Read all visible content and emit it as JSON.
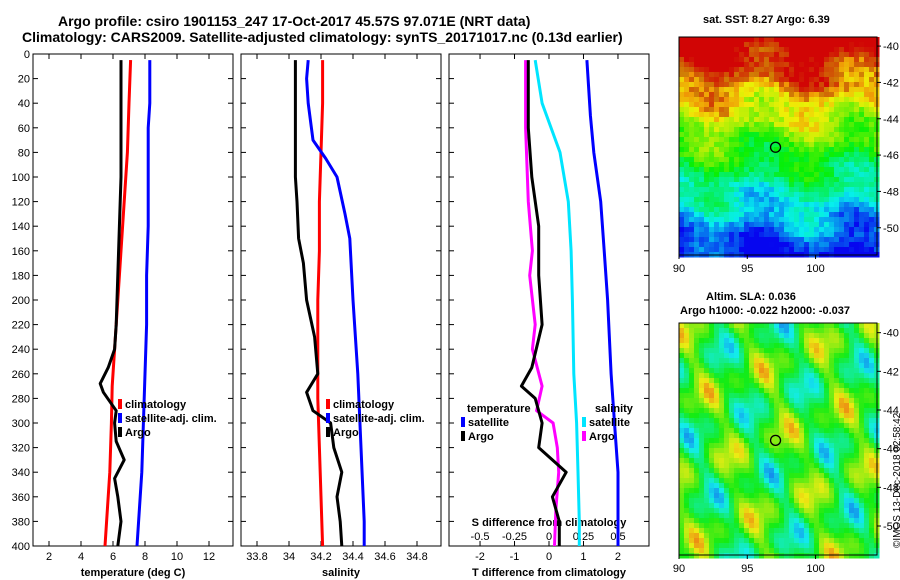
{
  "titles": {
    "line1": "Argo profile: csiro 1901153_247 17-Oct-2017 45.57S 97.071E (NRT data)",
    "line2": "Climatology: CARS2009. Satellite-adjusted climatology: synTS_20171017.nc (0.13d earlier)"
  },
  "colors": {
    "argo": "#000000",
    "climatology": "#ff0000",
    "satellite": "#0000ff",
    "s_satellite": "#00e5ff",
    "s_argo": "#ff00ff"
  },
  "depth_ticks": [
    0,
    20,
    40,
    60,
    80,
    100,
    120,
    140,
    160,
    180,
    200,
    220,
    240,
    260,
    280,
    300,
    320,
    340,
    360,
    380,
    400
  ],
  "chart_data": [
    {
      "type": "line",
      "xlabel": "temperature (deg C)",
      "ylabel": "depth",
      "xlim": [
        1,
        13.5
      ],
      "ylim": [
        400,
        0
      ],
      "xticks": [
        "2",
        "4",
        "6",
        "8",
        "10",
        "12"
      ],
      "legend": [
        "climatology",
        "satellite-adj. clim.",
        "Argo"
      ],
      "series": [
        {
          "name": "climatology",
          "depth": [
            5,
            40,
            80,
            120,
            160,
            200,
            240,
            270,
            300,
            340,
            380,
            400
          ],
          "values": [
            7.1,
            7.0,
            6.9,
            6.7,
            6.5,
            6.3,
            6.1,
            5.95,
            5.9,
            5.8,
            5.6,
            5.5
          ]
        },
        {
          "name": "satellite-adj. clim.",
          "depth": [
            5,
            40,
            60,
            100,
            140,
            180,
            220,
            260,
            300,
            340,
            380,
            400
          ],
          "values": [
            8.3,
            8.3,
            8.2,
            8.2,
            8.2,
            8.1,
            8.1,
            8.0,
            7.9,
            7.8,
            7.6,
            7.5
          ]
        },
        {
          "name": "Argo",
          "depth": [
            5,
            60,
            100,
            140,
            180,
            220,
            240,
            255,
            268,
            275,
            290,
            300,
            315,
            330,
            345,
            360,
            380,
            400
          ],
          "values": [
            6.5,
            6.5,
            6.5,
            6.4,
            6.3,
            6.2,
            6.1,
            5.7,
            5.2,
            5.4,
            6.2,
            6.1,
            6.2,
            6.7,
            6.1,
            6.3,
            6.5,
            6.3
          ]
        }
      ]
    },
    {
      "type": "line",
      "xlabel": "salinity",
      "ylabel": "depth",
      "xlim": [
        33.7,
        34.95
      ],
      "ylim": [
        400,
        0
      ],
      "xticks": [
        "33.8",
        "34",
        "34.2",
        "34.4",
        "34.6",
        "34.8"
      ],
      "legend": [
        "climatology",
        "satellite-adj. clim.",
        "Argo"
      ],
      "series": [
        {
          "name": "climatology",
          "depth": [
            5,
            40,
            80,
            120,
            160,
            200,
            240,
            280,
            320,
            360,
            400
          ],
          "values": [
            34.21,
            34.21,
            34.2,
            34.19,
            34.19,
            34.18,
            34.18,
            34.18,
            34.19,
            34.2,
            34.21
          ]
        },
        {
          "name": "satellite-adj. clim.",
          "depth": [
            5,
            20,
            40,
            70,
            85,
            100,
            130,
            150,
            200,
            260,
            320,
            380,
            400
          ],
          "values": [
            34.12,
            34.11,
            34.12,
            34.15,
            34.23,
            34.3,
            34.35,
            34.38,
            34.4,
            34.43,
            34.45,
            34.47,
            34.47
          ]
        },
        {
          "name": "Argo",
          "depth": [
            5,
            100,
            120,
            150,
            170,
            200,
            230,
            260,
            275,
            290,
            300,
            320,
            340,
            360,
            380,
            400
          ],
          "values": [
            34.04,
            34.04,
            34.05,
            34.06,
            34.09,
            34.11,
            34.16,
            34.18,
            34.11,
            34.15,
            34.26,
            34.28,
            34.33,
            34.3,
            34.32,
            34.33
          ]
        }
      ]
    },
    {
      "type": "line",
      "xlabel": "T difference from climatology",
      "x2label": "S difference from climatology",
      "ylabel": "depth",
      "xlim": [
        -2.9,
        2.9
      ],
      "ylim": [
        400,
        0
      ],
      "xticks": [
        "-2",
        "-1",
        "0",
        "1",
        "2"
      ],
      "x2ticks": [
        "-0.5",
        "-0.25",
        "0",
        "0.25",
        "0.5"
      ],
      "legend_left": {
        "heading": "temperature",
        "items": [
          "satellite",
          "Argo"
        ]
      },
      "legend_right": {
        "heading": "salinity",
        "items": [
          "satellite",
          "Argo"
        ]
      },
      "series": [
        {
          "name": "T satellite",
          "depth": [
            5,
            50,
            80,
            120,
            160,
            200,
            260,
            300,
            340,
            380,
            400
          ],
          "values": [
            1.1,
            1.2,
            1.3,
            1.5,
            1.6,
            1.7,
            1.8,
            1.9,
            2.0,
            2.0,
            2.0
          ]
        },
        {
          "name": "T Argo",
          "depth": [
            5,
            60,
            100,
            140,
            180,
            220,
            255,
            270,
            280,
            300,
            320,
            340,
            360,
            380,
            400
          ],
          "values": [
            -0.6,
            -0.6,
            -0.5,
            -0.3,
            -0.3,
            -0.2,
            -0.5,
            -0.8,
            -0.4,
            -0.2,
            -0.3,
            0.5,
            0.1,
            0.3,
            0.3
          ]
        },
        {
          "name": "S satellite",
          "depth": [
            5,
            40,
            80,
            120,
            160,
            200,
            260,
            300,
            340,
            380,
            400
          ],
          "values": [
            -0.1,
            -0.05,
            0.08,
            0.14,
            0.16,
            0.17,
            0.18,
            0.2,
            0.21,
            0.22,
            0.22
          ]
        },
        {
          "name": "S Argo",
          "depth": [
            5,
            60,
            120,
            160,
            180,
            220,
            240,
            270,
            290,
            300,
            320,
            340,
            370,
            400
          ],
          "values": [
            -0.17,
            -0.17,
            -0.15,
            -0.12,
            -0.14,
            -0.1,
            -0.12,
            -0.05,
            -0.09,
            0.03,
            0.06,
            0.07,
            0.05,
            0.04
          ]
        }
      ]
    },
    {
      "type": "heatmap",
      "title": "sat. SST: 8.27 Argo: 6.39",
      "xlim": [
        90,
        104.5
      ],
      "ylim": [
        -51.5,
        -39.5
      ],
      "xticks": [
        "90",
        "95",
        "100"
      ],
      "yticks": [
        "-40",
        "-42",
        "-44",
        "-46",
        "-48",
        "-50"
      ],
      "profile_marker": {
        "lon": 97.07,
        "lat": -45.57
      }
    },
    {
      "type": "heatmap",
      "title": "Altim. SLA: 0.036",
      "subtitle": "Argo h1000: -0.022 h2000: -0.037",
      "xlim": [
        90,
        104.5
      ],
      "ylim": [
        -51.5,
        -39.5
      ],
      "xticks": [
        "90",
        "95",
        "100"
      ],
      "yticks": [
        "-40",
        "-42",
        "-44",
        "-46",
        "-48",
        "-50"
      ],
      "profile_marker": {
        "lon": 97.07,
        "lat": -45.57
      }
    }
  ],
  "credit": "©IMOS 13-Dec-2018 02:58:42"
}
